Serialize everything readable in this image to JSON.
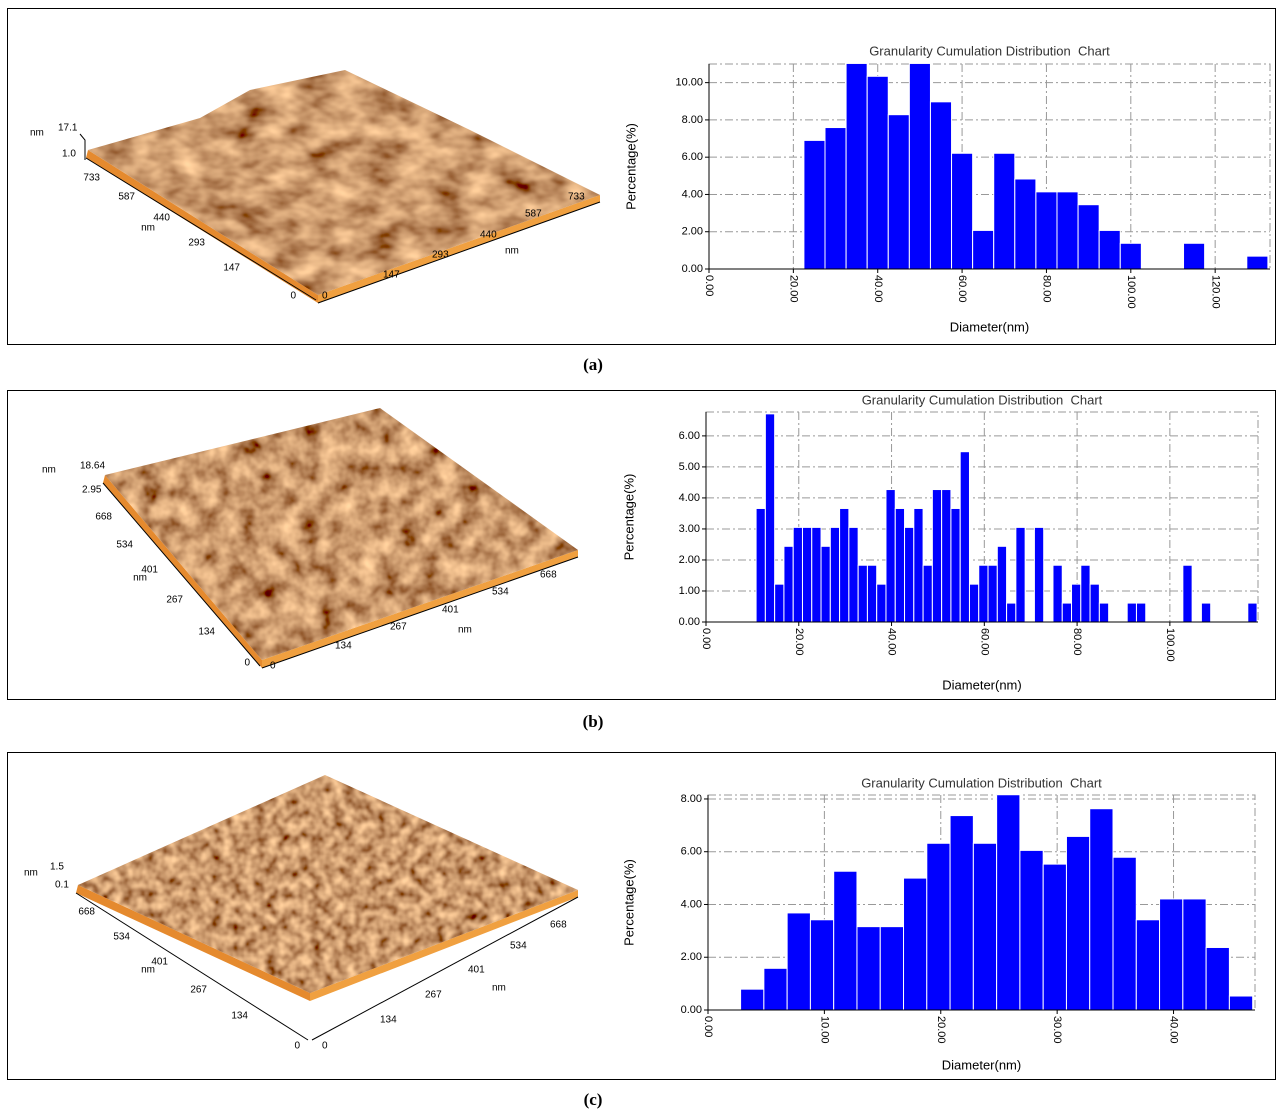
{
  "chart_data": [
    {
      "type": "histogram",
      "panel_label": "(a)",
      "title": "Granularity Cumulation Distribution  Chart",
      "xlabel": "Diameter(nm)",
      "ylabel": "Percentage(%)",
      "color": "#0000ff",
      "grid": true,
      "bins": [
        22.5,
        27.5,
        32.5,
        37.5,
        42.5,
        47.5,
        52.5,
        57.5,
        62.5,
        67.5,
        72.5,
        77.5,
        82.5,
        87.5,
        92.5,
        97.5,
        102.5,
        107.5,
        112.5,
        117.5,
        122.5,
        127.5,
        132.5
      ],
      "values": [
        6.9,
        7.59,
        11.03,
        10.34,
        8.28,
        11.03,
        8.97,
        6.21,
        2.07,
        6.21,
        4.83,
        4.14,
        4.14,
        3.45,
        2.07,
        1.38,
        0,
        0,
        1.38,
        0,
        0,
        0.69
      ],
      "xlim": [
        0,
        133
      ],
      "ylim": [
        0,
        11
      ],
      "xticks": [
        {
          "value": 0,
          "label": "0.00"
        },
        {
          "value": 20,
          "label": "20.00"
        },
        {
          "value": 40,
          "label": "40.00"
        },
        {
          "value": 60,
          "label": "60.00"
        },
        {
          "value": 80,
          "label": "80.00"
        },
        {
          "value": 100,
          "label": "100.00"
        },
        {
          "value": 120,
          "label": "120.00"
        }
      ],
      "yticks": [
        {
          "value": 0,
          "label": "0.00"
        },
        {
          "value": 2,
          "label": "2.00"
        },
        {
          "value": 4,
          "label": "4.00"
        },
        {
          "value": 6,
          "label": "6.00"
        },
        {
          "value": 8,
          "label": "8.00"
        },
        {
          "value": 10,
          "label": "10.00"
        }
      ]
    },
    {
      "type": "histogram",
      "panel_label": "(b)",
      "title": "Granularity Cumulation Distribution  Chart",
      "xlabel": "Diameter(nm)",
      "ylabel": "Percentage(%)",
      "color": "#0000ff",
      "grid": true,
      "bins": [
        10.8,
        12.8,
        14.8,
        16.8,
        18.8,
        20.8,
        22.8,
        24.8,
        26.8,
        28.8,
        30.8,
        32.8,
        34.8,
        36.8,
        38.8,
        40.8,
        42.8,
        44.8,
        46.8,
        48.8,
        50.8,
        52.8,
        54.8,
        56.8,
        58.8,
        60.8,
        62.8,
        64.8,
        66.8,
        68.8,
        70.8,
        72.8,
        74.8,
        76.8,
        78.8,
        80.8,
        82.8,
        84.8,
        86.8,
        88.8,
        90.8,
        92.8,
        94.8,
        96.8,
        98.8,
        100.8,
        102.8,
        104.8,
        106.8,
        108.8,
        110.8,
        112.8,
        114.8,
        116.8,
        118.8
      ],
      "values": [
        3.66,
        6.71,
        1.22,
        2.44,
        3.05,
        3.05,
        3.05,
        2.44,
        3.05,
        3.66,
        3.05,
        1.83,
        1.83,
        1.22,
        4.27,
        3.66,
        3.05,
        3.66,
        1.83,
        4.27,
        4.27,
        3.66,
        5.49,
        1.22,
        1.83,
        1.83,
        2.44,
        0.61,
        3.05,
        0,
        3.05,
        0,
        1.83,
        0.61,
        1.22,
        1.83,
        1.22,
        0.61,
        0,
        0,
        0.61,
        0.61,
        0,
        0,
        0,
        0,
        1.83,
        0,
        0.61,
        0,
        0,
        0,
        0,
        0.61
      ],
      "xlim": [
        0,
        119
      ],
      "ylim": [
        0,
        6.77
      ],
      "xticks": [
        {
          "value": 0,
          "label": "0.00"
        },
        {
          "value": 20,
          "label": "20.00"
        },
        {
          "value": 40,
          "label": "40.00"
        },
        {
          "value": 60,
          "label": "60.00"
        },
        {
          "value": 80,
          "label": "80.00"
        },
        {
          "value": 100,
          "label": "100.00"
        }
      ],
      "yticks": [
        {
          "value": 0,
          "label": "0.00"
        },
        {
          "value": 1,
          "label": "1.00"
        },
        {
          "value": 2,
          "label": "2.00"
        },
        {
          "value": 3,
          "label": "3.00"
        },
        {
          "value": 4,
          "label": "4.00"
        },
        {
          "value": 5,
          "label": "5.00"
        },
        {
          "value": 6,
          "label": "6.00"
        }
      ]
    },
    {
      "type": "histogram",
      "panel_label": "(c)",
      "title": "Granularity Cumulation Distribution  Chart",
      "xlabel": "Diameter(nm)",
      "ylabel": "Percentage(%)",
      "color": "#0000ff",
      "grid": true,
      "bins": [
        2.8,
        4.8,
        6.8,
        8.8,
        10.8,
        12.8,
        14.8,
        16.8,
        18.8,
        20.8,
        22.8,
        24.8,
        26.8,
        28.8,
        30.8,
        32.8,
        34.8,
        36.8,
        38.8,
        40.8,
        42.8,
        44.8,
        46.8
      ],
      "values": [
        0.79,
        1.58,
        3.68,
        3.42,
        5.26,
        3.16,
        3.16,
        5.0,
        6.32,
        7.37,
        6.32,
        8.16,
        6.05,
        5.53,
        6.58,
        7.63,
        5.79,
        3.42,
        4.21,
        4.21,
        2.37,
        0.53
      ],
      "xlim": [
        0,
        47
      ],
      "ylim": [
        0,
        8.15
      ],
      "xticks": [
        {
          "value": 0,
          "label": "0.00"
        },
        {
          "value": 10,
          "label": "10.00"
        },
        {
          "value": 20,
          "label": "20.00"
        },
        {
          "value": 30,
          "label": "30.00"
        },
        {
          "value": 40,
          "label": "40.00"
        }
      ],
      "yticks": [
        {
          "value": 0,
          "label": "0.00"
        },
        {
          "value": 2,
          "label": "2.00"
        },
        {
          "value": 4,
          "label": "4.00"
        },
        {
          "value": 6,
          "label": "6.00"
        },
        {
          "value": 8,
          "label": "8.00"
        }
      ]
    }
  ],
  "afm_images": [
    {
      "z_unit": "nm",
      "z_max": "17.1",
      "z_min": "1.0",
      "left_ticks": [
        "0",
        "147",
        "293",
        "440",
        "587",
        "733"
      ],
      "left_unit": "nm",
      "right_ticks": [
        "0",
        "147",
        "293",
        "440",
        "587",
        "733"
      ],
      "right_unit": "nm"
    },
    {
      "z_unit": "nm",
      "z_max": "18.64",
      "z_min": "2.95",
      "left_ticks": [
        "0",
        "134",
        "267",
        "401",
        "534",
        "668"
      ],
      "left_unit": "nm",
      "right_ticks": [
        "0",
        "134",
        "267",
        "401",
        "534",
        "668"
      ],
      "right_unit": "nm"
    },
    {
      "z_unit": "nm",
      "z_max": "1.5",
      "z_min": "0.1",
      "left_ticks": [
        "0",
        "134",
        "267",
        "401",
        "534",
        "668"
      ],
      "left_unit": "nm",
      "right_ticks": [
        "0",
        "134",
        "267",
        "401",
        "534",
        "668"
      ],
      "right_unit": "nm"
    }
  ]
}
